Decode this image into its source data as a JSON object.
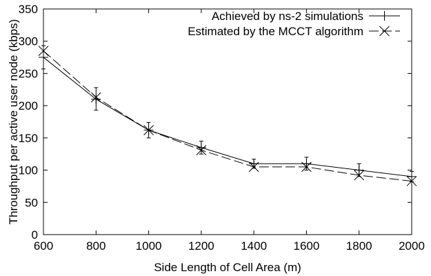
{
  "chart_data": {
    "type": "line",
    "title": "",
    "xlabel": "Side Length of Cell Area (m)",
    "ylabel": "Throughput per active user node (kbps)",
    "xlim": [
      600,
      2000
    ],
    "ylim": [
      0,
      350
    ],
    "x_ticks": [
      "600",
      "800",
      "1000",
      "1200",
      "1400",
      "1600",
      "1800",
      "2000"
    ],
    "y_ticks": [
      "0",
      "50",
      "100",
      "150",
      "200",
      "250",
      "300",
      "350"
    ],
    "grid": false,
    "legend_position": "top-right",
    "x": [
      600,
      800,
      1000,
      1200,
      1400,
      1600,
      1800,
      2000
    ],
    "series": [
      {
        "name": "Achieved by ns-2 simulations",
        "marker": "plus",
        "line_style": "solid",
        "values": [
          275,
          210,
          162,
          135,
          110,
          110,
          100,
          90
        ],
        "error_low": [
          257,
          193,
          150,
          125,
          103,
          100,
          90,
          82
        ],
        "error_high": [
          293,
          228,
          174,
          145,
          117,
          120,
          110,
          98
        ]
      },
      {
        "name": "Estimated by the MCCT algorithm",
        "marker": "x",
        "line_style": "dashed",
        "values": [
          285,
          213,
          162,
          131,
          105,
          105,
          92,
          83
        ]
      }
    ],
    "colors": {
      "line": "#000000",
      "background": "#ffffff"
    }
  }
}
